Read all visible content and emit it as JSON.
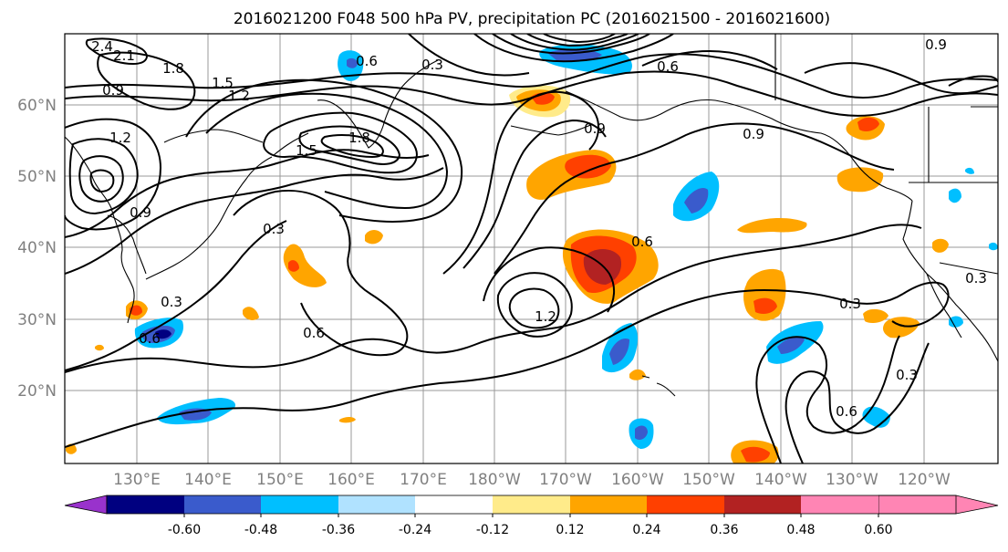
{
  "title": "2016021200 F048 500 hPa PV, precipitation PC (2016021500 - 2016021600)",
  "map": {
    "lat_labels": [
      "20°N",
      "30°N",
      "40°N",
      "50°N",
      "60°N"
    ],
    "lon_labels": [
      "130°E",
      "140°E",
      "150°E",
      "160°E",
      "170°E",
      "180°W",
      "170°W",
      "160°W",
      "150°W",
      "140°W",
      "130°W",
      "120°W"
    ],
    "label_color": "#808080"
  },
  "contour_labels": [
    "2.4",
    "2.1",
    "1.8",
    "1.5",
    "1.2",
    "0.9",
    "0.6",
    "0.3",
    "1.8",
    "1.5",
    "1.2",
    "0.9",
    "0.6",
    "0.3",
    "0.6",
    "0.9",
    "0.6",
    "0.3",
    "0.6",
    "0.3",
    "1.2",
    "0.6",
    "0.3",
    "0.9",
    "0.9",
    "0.3"
  ],
  "colorbar": {
    "levels": [
      "-0.60",
      "-0.48",
      "-0.36",
      "-0.24",
      "-0.12",
      "0.12",
      "0.24",
      "0.36",
      "0.48",
      "0.60"
    ],
    "colors": [
      "#9932CC",
      "#000080",
      "#3A5BCC",
      "#00BFFF",
      "#B0E2FF",
      "#FFFFFF",
      "#FFEB8A",
      "#FFA500",
      "#FF4000",
      "#B22222",
      "#FF85B4"
    ]
  }
}
